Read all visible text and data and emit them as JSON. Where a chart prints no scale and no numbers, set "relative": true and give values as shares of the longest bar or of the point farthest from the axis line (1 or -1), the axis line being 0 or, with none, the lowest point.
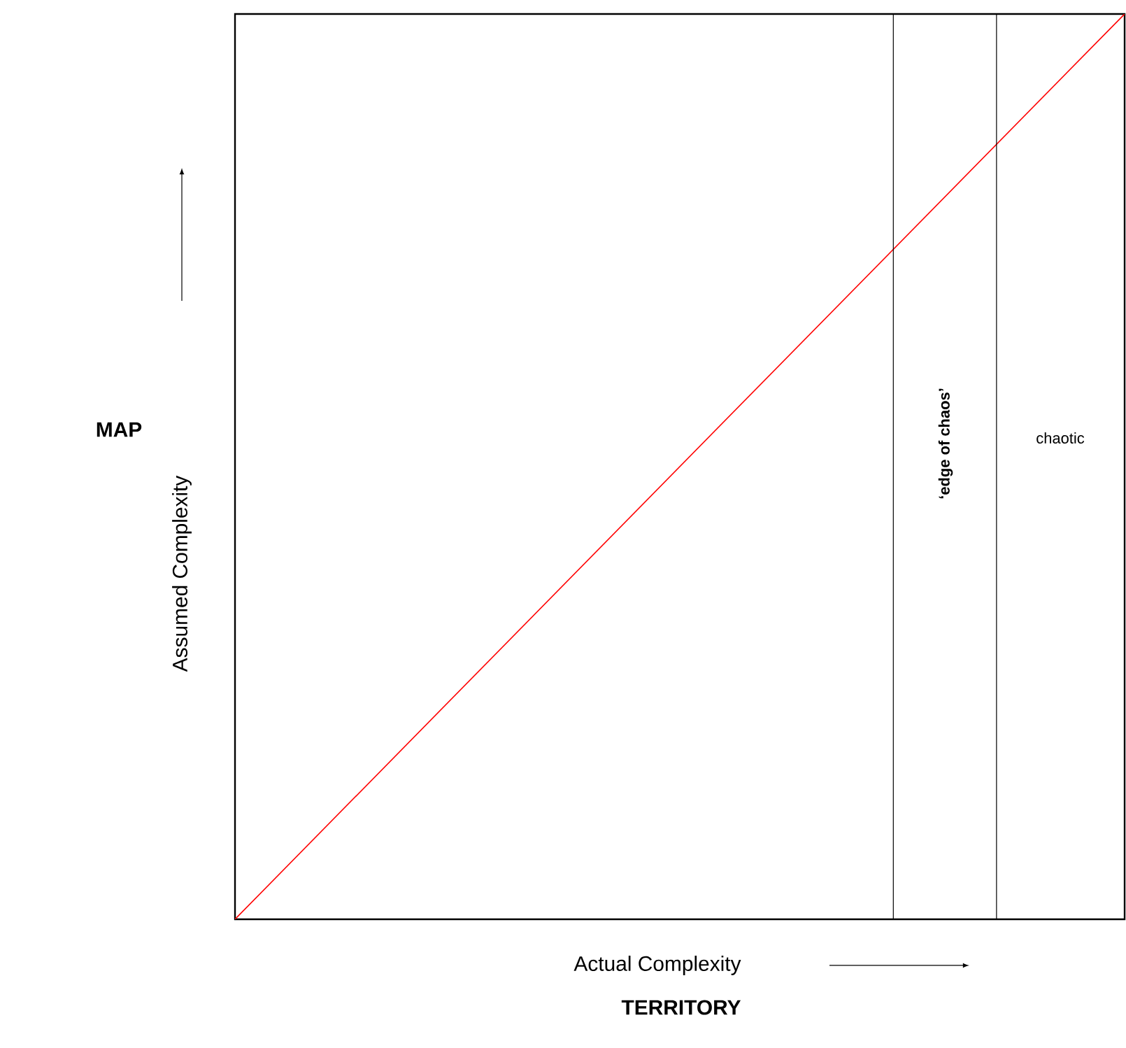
{
  "chart_data": {
    "type": "line",
    "relative": true,
    "xlabel": "Actual Complexity",
    "ylabel": "Assumed Complexity",
    "categories": [
      null,
      null
    ],
    "series": [
      {
        "color": "#ff0000",
        "values": [
          0,
          1
        ]
      }
    ],
    "annotations": [
      "MAP",
      "TERRITORY",
      "**‘edge of chaos’**",
      "chaotic"
    ]
  }
}
